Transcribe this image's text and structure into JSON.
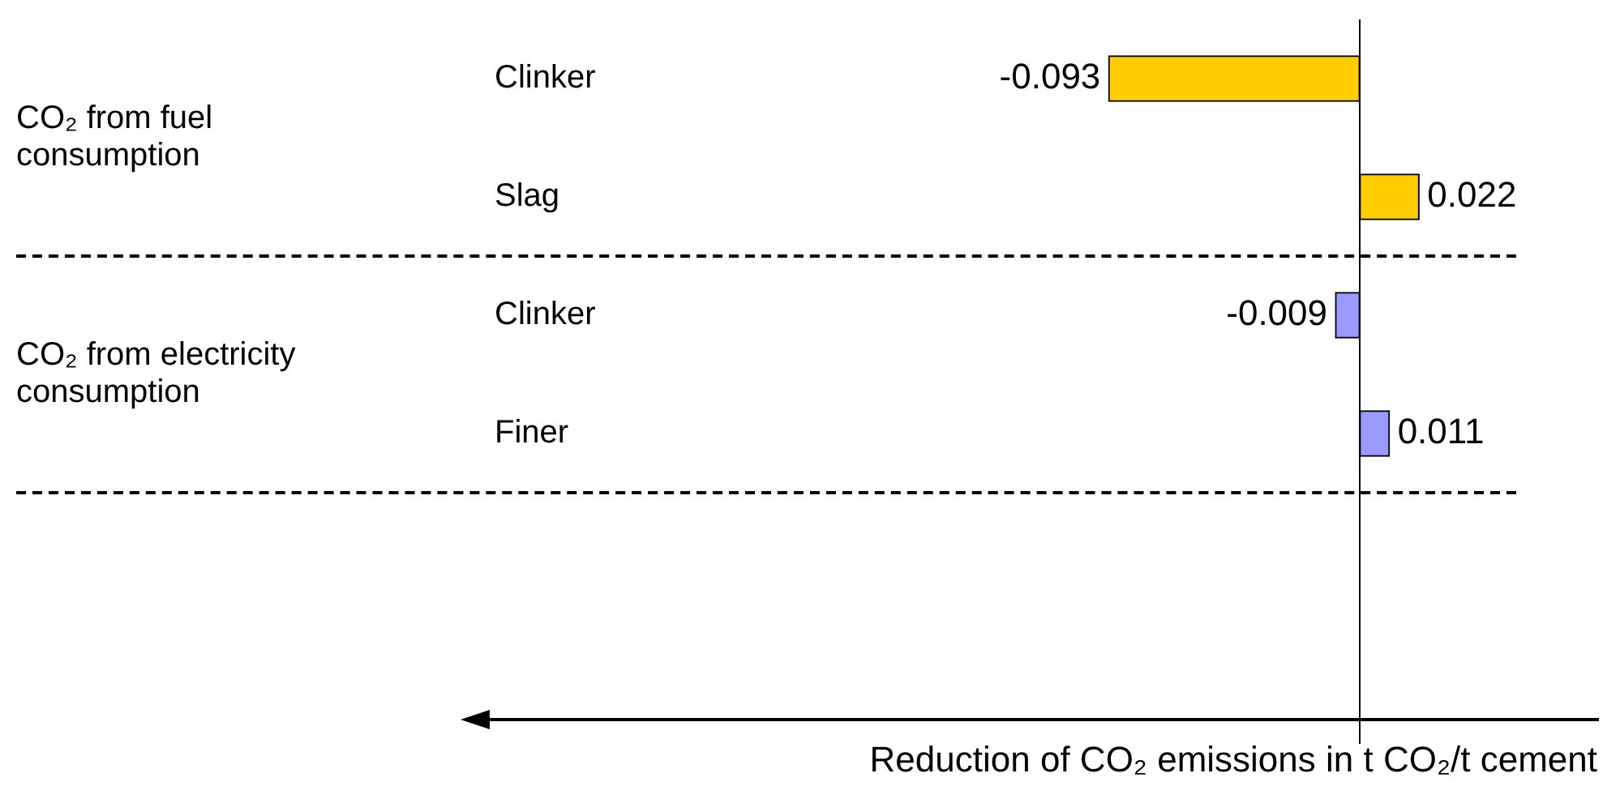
{
  "chart_data": {
    "type": "bar",
    "orientation": "horizontal",
    "categories": [
      "Clinker",
      "Slag",
      "Clinker",
      "Finer"
    ],
    "values": [
      -0.093,
      0.022,
      -0.009,
      0.011
    ],
    "colors": [
      "#ffcc00",
      "#ffcc00",
      "#9999ff",
      "#9999ff"
    ],
    "ref_lines": [
      {
        "axis": "x",
        "value": 0,
        "color": "#000000"
      }
    ],
    "data_labels": true,
    "tick_labels": "y",
    "grid": false,
    "legend": false,
    "annotations": [
      "CO₂ from fuel consumption",
      "CO₂ from electricity consumption",
      "Reduction of CO₂ emissions in t CO₂/t cement"
    ]
  }
}
